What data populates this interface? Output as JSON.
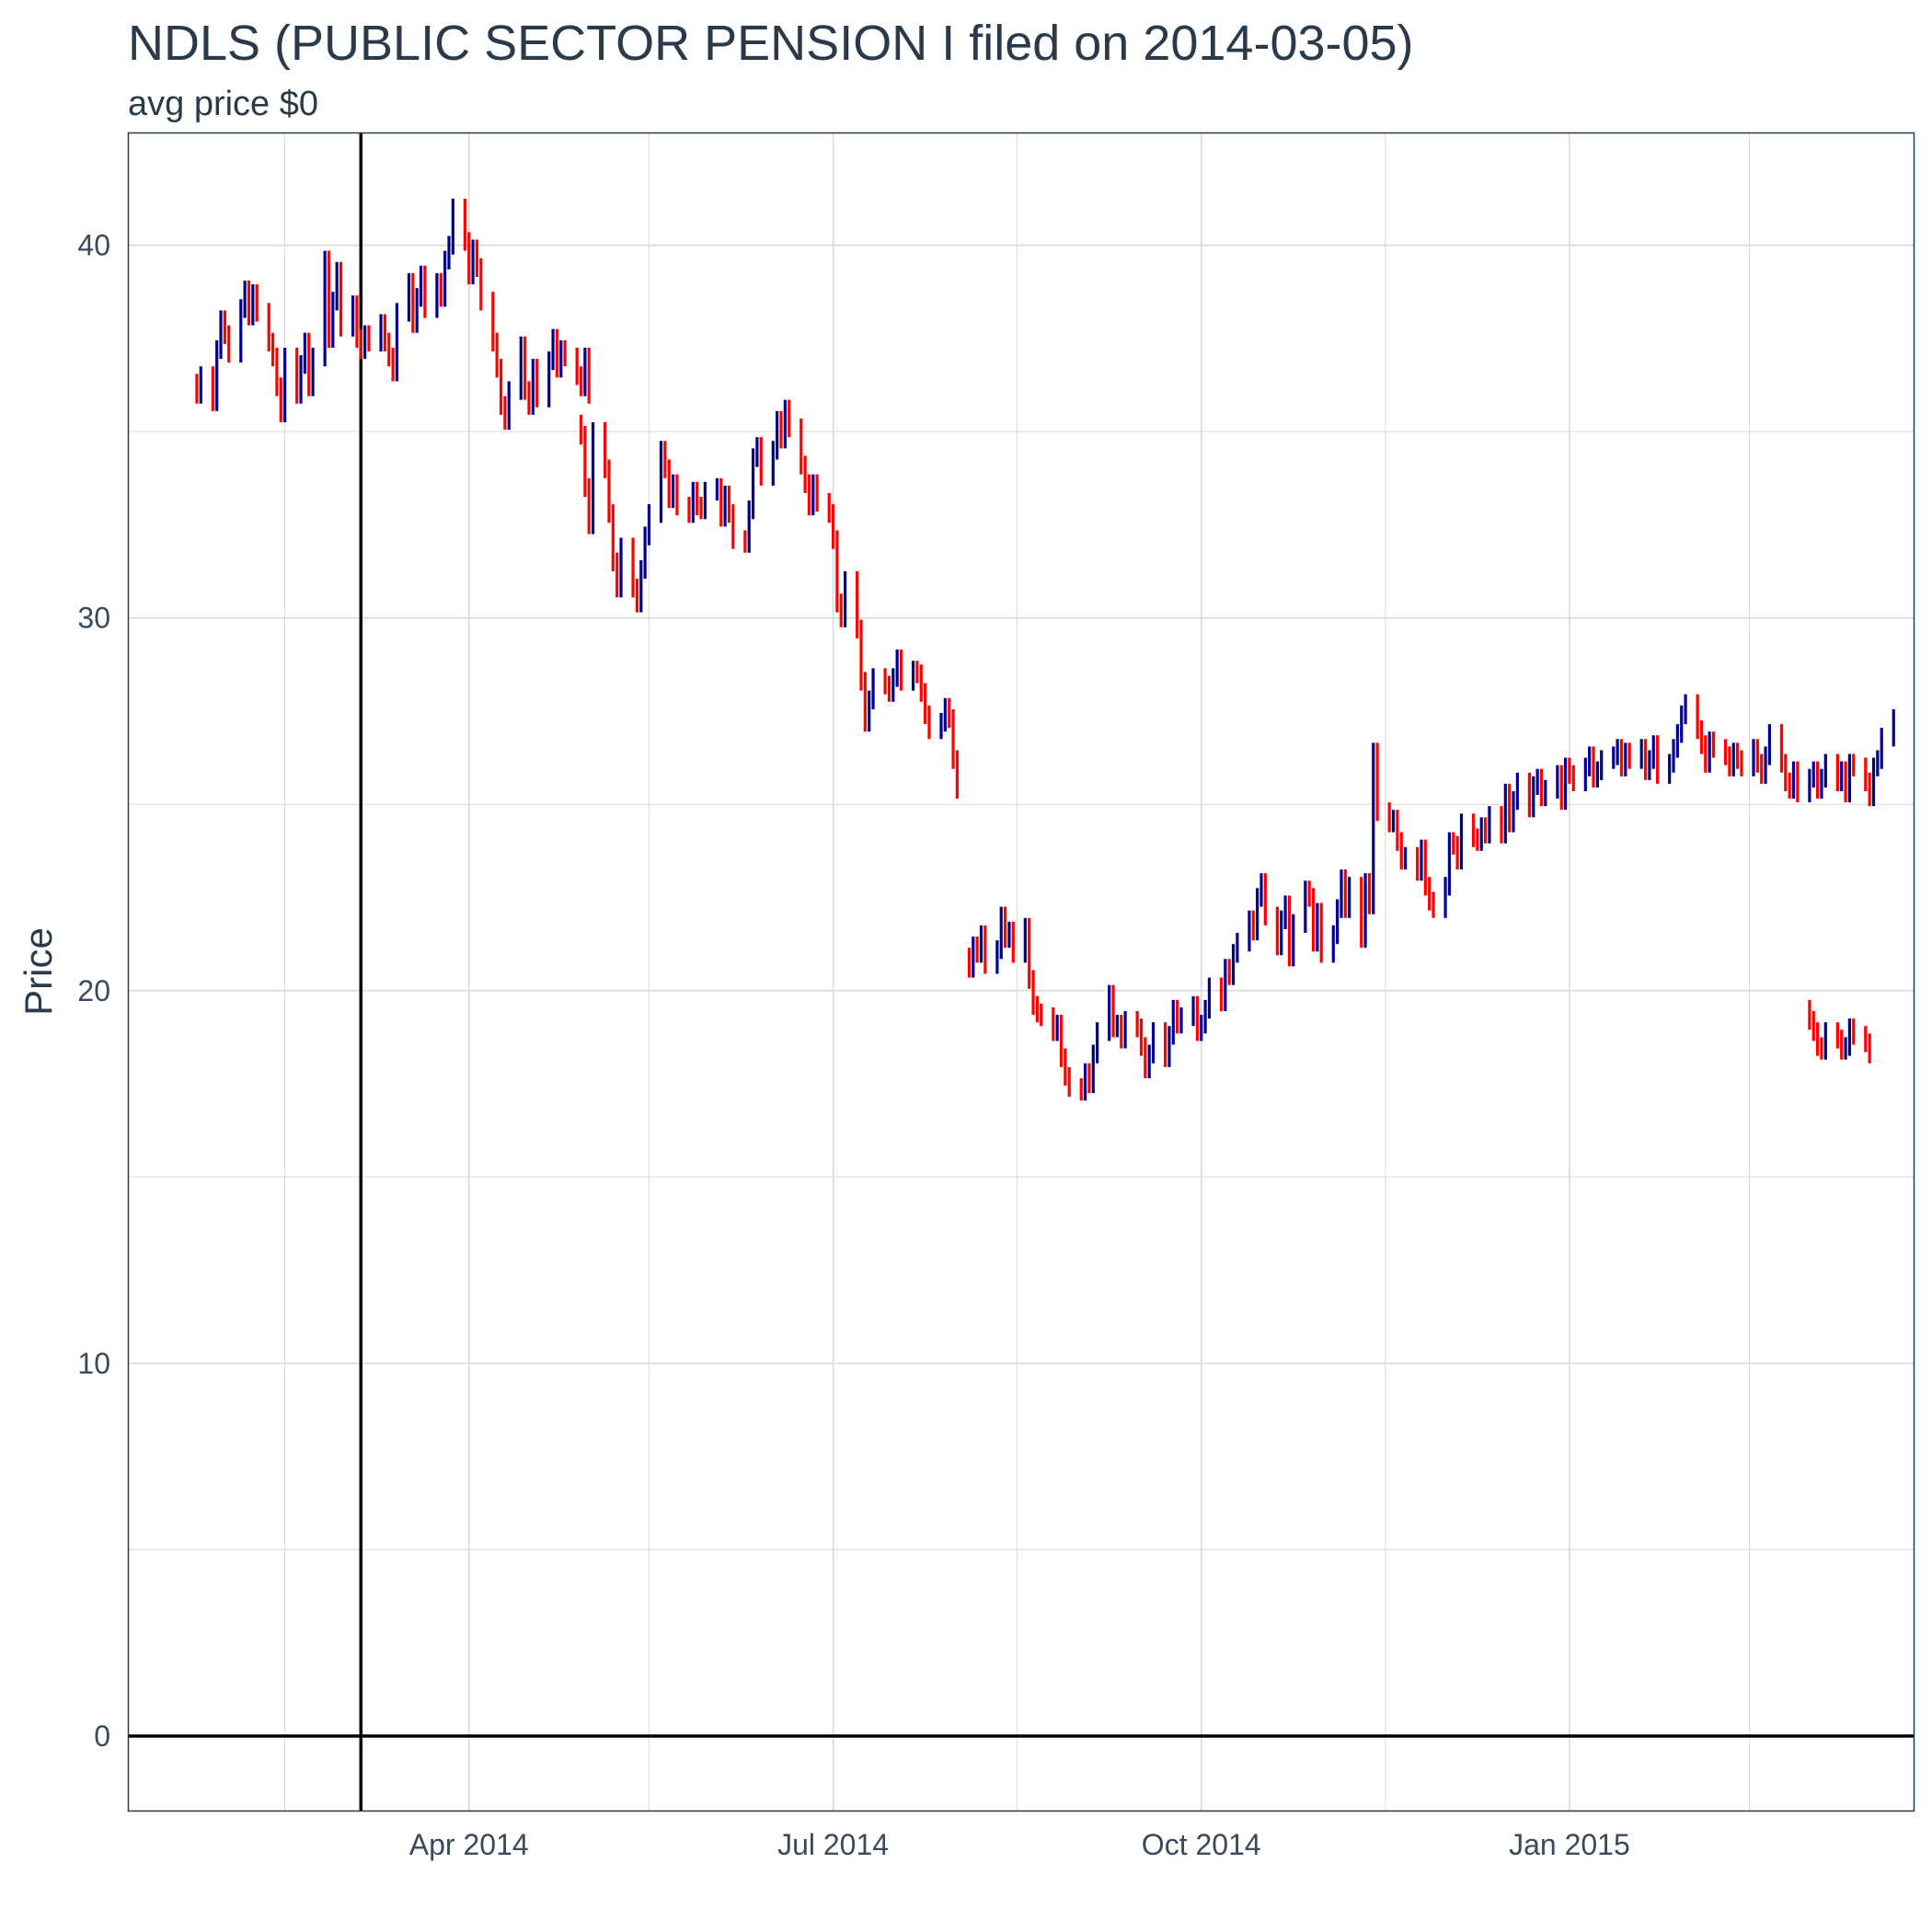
{
  "chart_data": {
    "type": "ohlc",
    "title": "NDLS (PUBLIC SECTOR PENSION I filed on 2014-03-05)",
    "subtitle": "avg price $0",
    "xlabel": "",
    "ylabel": "Price",
    "ylim": [
      -2,
      43
    ],
    "xlim": [
      "2014-01-06",
      "2015-03-28"
    ],
    "yticks": [
      0,
      10,
      20,
      30,
      40
    ],
    "xticks": [
      {
        "date": "2014-04-01",
        "label": "Apr 2014"
      },
      {
        "date": "2014-07-01",
        "label": "Jul 2014"
      },
      {
        "date": "2014-10-01",
        "label": "Oct 2014"
      },
      {
        "date": "2015-01-01",
        "label": "Jan 2015"
      }
    ],
    "grid": true,
    "reference_lines": {
      "vertical_date": "2014-03-05",
      "horizontal_value": 0
    },
    "colors": {
      "up": "#00008b",
      "down": "#ff0000",
      "reference": "#000000",
      "grid": "#d9d9d9",
      "border": "#2b3a4a"
    },
    "series": [
      {
        "segments": [
          {
            "start": "2014-01-23",
            "closes": [
              36.0,
              36.5,
              35.8,
              37.2,
              38.0,
              37.6,
              37.1,
              38.3,
              38.8,
              38.1,
              38.7,
              38.2,
              37.4,
              37.0,
              36.2,
              35.5,
              37.0,
              36.0,
              36.8,
              37.4,
              36.2,
              37.0,
              39.6,
              37.5,
              38.5,
              39.3,
              37.8,
              38.4,
              37.5,
              37.2,
              37.6,
              37.4,
              37.9,
              37.4,
              37.0,
              36.6,
              38.2,
              39.0,
              37.9,
              38.6,
              39.2,
              38.3,
              39.0,
              38.6,
              39.6,
              40.0,
              41.0,
              40.1,
              39.2,
              39.9,
              39.4,
              38.5,
              37.4,
              36.7,
              35.7,
              35.3,
              36.1,
              37.3,
              36.1,
              35.7,
              36.7,
              35.9,
              36.9,
              37.5,
              36.7,
              37.2,
              37.0,
              36.5,
              36.2,
              37.0,
              36.0
            ]
          },
          {
            "start": "2014-04-29",
            "closes": [
              34.9,
              33.5,
              32.5,
              35.0,
              34.0,
              32.8,
              31.5,
              30.8,
              31.9,
              30.8,
              30.4,
              31.3,
              32.2,
              32.8,
              34.5,
              34.0,
              33.2,
              33.6,
              33.0,
              32.8,
              33.4,
              33.0,
              32.9,
              33.4,
              33.5,
              32.7,
              33.3,
              32.8,
              32.1,
              32.0,
              32.9,
              34.3,
              34.6,
              33.8,
              34.5,
              35.3,
              34.8,
              35.6,
              35.1,
              34.1,
              33.6,
              33.0,
              33.6,
              33.1,
              32.8,
              32.1,
              30.4,
              30.0,
              31.0,
              29.7,
              28.3,
              27.2,
              27.8,
              28.4,
              28.2,
              28.0,
              28.4,
              28.9,
              28.3,
              28.6,
              28.5,
              28.0,
              27.4,
              27.0,
              27.2,
              27.6,
              27.3,
              26.2,
              25.4
            ]
          },
          {
            "start": "2014-08-04",
            "closes": [
              20.6,
              21.2,
              21.0,
              21.5,
              20.7,
              21.1,
              22.0,
              21.4,
              21.6,
              21.0,
              21.7,
              20.3,
              19.6,
              19.4,
              19.3,
              18.9,
              19.1,
              18.2,
              17.7,
              17.4,
              17.3,
              17.8,
              17.5,
              18.3,
              18.9,
              19.9,
              19.0,
              19.1,
              18.7,
              19.2,
              19.0,
              18.5,
              17.9,
              18.3,
              18.9,
              18.2,
              18.8,
              19.5,
              19.1,
              19.3,
              19.6,
              18.9,
              19.1,
              19.5,
              20.1,
              19.7,
              20.6,
              20.4,
              21.0,
              21.3,
              21.9,
              21.6,
              22.5,
              22.9,
              22.0,
              21.2,
              21.9,
              22.3,
              20.9,
              21.8,
              22.7,
              22.5,
              21.3,
              22.1,
              21.0,
              21.5,
              22.2,
              23.0,
              22.2,
              22.8,
              21.4,
              22.9,
              22.3,
              26.4,
              24.8,
              24.5,
              24.6,
              24.0,
              23.5,
              23.6,
              23.2,
              23.8,
              22.8,
              22.4,
              22.2,
              22.8,
              24.0,
              23.9,
              23.5,
              24.5,
              24.1,
              24.0,
              24.4,
              24.2,
              24.7,
              24.2,
              25.3,
              24.5,
              25.1,
              25.6,
              24.9,
              25.5,
              25.7,
              25.2,
              25.4,
              25.8,
              25.1,
              26.0,
              25.8,
              25.6,
              26.0,
              26.3,
              25.7,
              25.9,
              26.2,
              26.3,
              26.5,
              26.0,
              26.4,
              26.2,
              26.5,
              25.9,
              26.2,
              26.6,
              25.8,
              26.1,
              26.5,
              26.9,
              27.4,
              27.7,
              27.0,
              26.6,
              26.1,
              26.7,
              26.5,
              26.3,
              26.0,
              26.4,
              26.2,
              26.0,
              26.5,
              26.1,
              25.8,
              26.3,
              26.9,
              26.1,
              25.6,
              25.4,
              25.9,
              25.3,
              25.7,
              25.9,
              25.4,
              25.7,
              26.1,
              25.6,
              25.9,
              25.3,
              26.1,
              26.0,
              25.6,
              25.2,
              26.0,
              26.2,
              26.8,
              27.3
            ]
          },
          {
            "start": "2015-03-02",
            "closes": [
              19.2,
              18.9,
              18.5,
              18.4,
              18.9,
              18.7,
              18.4,
              18.5,
              19.0,
              18.8,
              18.6,
              18.3
            ]
          }
        ]
      }
    ]
  }
}
